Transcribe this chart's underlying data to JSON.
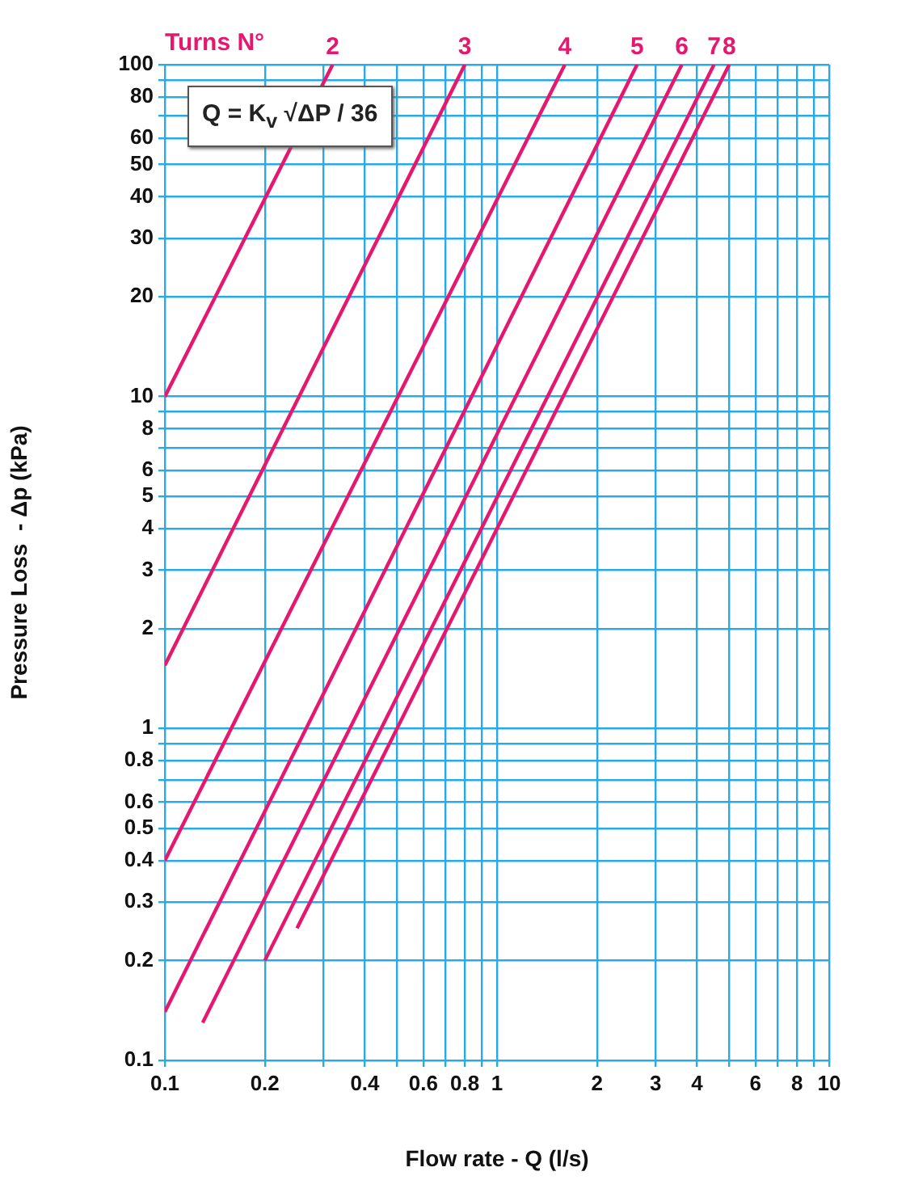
{
  "chart_data": {
    "type": "line",
    "xlabel": "Flow rate - Q (l/s)",
    "ylabel": "Pressure Loss  - Δp (kPa)",
    "annotations": [
      "Turns N°",
      "Q = K$_{v}$ √ΔP / 36"
    ],
    "log": "xy",
    "grid": true,
    "legend": false,
    "marker": "none",
    "line_style": "solid",
    "xlim": [
      0.1,
      10
    ],
    "xticks": [
      0.1,
      0.2,
      {
        "value": 0.3,
        "label": null
      },
      0.4,
      {
        "value": 0.5,
        "label": null
      },
      0.6,
      {
        "value": 0.7,
        "label": null
      },
      0.8,
      {
        "value": 0.9,
        "label": null
      },
      1,
      2,
      3,
      4,
      {
        "value": 5,
        "label": null
      },
      6,
      {
        "value": 7,
        "label": null
      },
      8,
      {
        "value": 9,
        "label": null
      },
      10
    ],
    "ylim": [
      0.1,
      100
    ],
    "yticks": [
      0.1,
      0.2,
      0.3,
      0.4,
      0.5,
      0.6,
      {
        "value": 0.7,
        "label": null
      },
      0.8,
      {
        "value": 0.9,
        "label": null
      },
      1,
      2,
      3,
      4,
      5,
      6,
      {
        "value": 7,
        "label": null
      },
      8,
      {
        "value": 9,
        "label": null
      },
      10,
      20,
      30,
      40,
      50,
      60,
      {
        "value": 70,
        "label": null
      },
      80,
      {
        "value": 90,
        "label": null
      },
      100
    ],
    "series": [
      {
        "name": "2",
        "color": "#e5176f",
        "x": [
          0.1,
          0.32
        ],
        "values": [
          10,
          100
        ]
      },
      {
        "name": "3",
        "color": "#e5176f",
        "x": [
          0.1,
          0.8
        ],
        "values": [
          1.55,
          100
        ]
      },
      {
        "name": "4",
        "color": "#e5176f",
        "x": [
          0.1,
          1.6
        ],
        "values": [
          0.4,
          100
        ]
      },
      {
        "name": "5",
        "color": "#e5176f",
        "x": [
          0.1,
          2.64
        ],
        "values": [
          0.14,
          100
        ]
      },
      {
        "name": "6",
        "color": "#e5176f",
        "x": [
          0.13,
          3.6
        ],
        "values": [
          0.13,
          100
        ]
      },
      {
        "name": "7",
        "color": "#e5176f",
        "x": [
          0.2,
          4.5
        ],
        "values": [
          0.2,
          100
        ]
      },
      {
        "name": "8",
        "color": "#e5176f",
        "x": [
          0.25,
          5.0
        ],
        "values": [
          0.25,
          100
        ]
      }
    ]
  }
}
